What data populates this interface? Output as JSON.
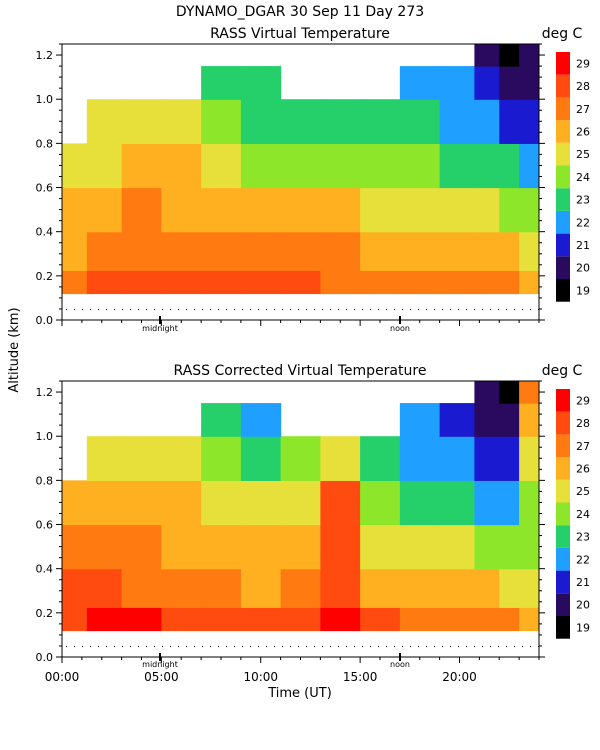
{
  "header": "DYNAMO_DGAR  30 Sep 11 Day 273",
  "y_axis_label": "Altitude (km)",
  "x_axis_label": "Time (UT)",
  "unit_label": "deg C",
  "markers": [
    "midnight",
    "noon"
  ],
  "colorbar": {
    "levels": [
      19,
      20,
      21,
      22,
      23,
      24,
      25,
      26,
      27,
      28,
      29
    ],
    "colors": [
      "#000000",
      "#2a0a5e",
      "#1a1ad0",
      "#1f9fff",
      "#25d06a",
      "#8ee62a",
      "#e8e03a",
      "#ffb020",
      "#ff7a10",
      "#ff4a10",
      "#ff0000"
    ]
  },
  "chart_data": [
    {
      "type": "heatmap",
      "title": "RASS Virtual Temperature",
      "x_ticks": [
        "00:00",
        "05:00",
        "10:00",
        "15:00",
        "20:00"
      ],
      "xlim": [
        0,
        24
      ],
      "ylim": [
        0.0,
        1.25
      ],
      "y_ticks": [
        "0.0",
        "0.2",
        "0.4",
        "0.6",
        "0.8",
        "1.0",
        "1.2"
      ],
      "z_units": "deg C",
      "x": [
        0.5,
        2,
        4,
        6,
        8,
        10,
        12,
        14,
        16,
        18,
        20,
        21.5,
        22.5,
        23.5
      ],
      "y": [
        0.15,
        0.3,
        0.5,
        0.7,
        0.9,
        1.1,
        1.2
      ],
      "z": [
        [
          27.6,
          28.2,
          28.6,
          28.8,
          28.7,
          28.8,
          28.7,
          27.8,
          27.4,
          27.4,
          27.4,
          27.4,
          27.0,
          26.8
        ],
        [
          26.8,
          27.2,
          27.6,
          27.8,
          27.7,
          27.6,
          27.4,
          27.0,
          26.8,
          26.6,
          26.4,
          26.2,
          26.0,
          25.8
        ],
        [
          26.4,
          26.6,
          27.0,
          26.8,
          26.6,
          26.2,
          26.0,
          26.0,
          25.8,
          25.6,
          25.4,
          25.0,
          24.6,
          24.4
        ],
        [
          25.6,
          25.8,
          26.4,
          26.0,
          25.4,
          24.8,
          24.6,
          24.6,
          24.2,
          24.0,
          23.8,
          23.4,
          23.0,
          22.8
        ],
        [
          null,
          25.0,
          25.8,
          25.2,
          24.2,
          23.8,
          23.6,
          23.6,
          23.4,
          23.0,
          22.6,
          22.2,
          21.8,
          21.6
        ],
        [
          null,
          null,
          null,
          null,
          23.8,
          23.2,
          null,
          null,
          null,
          22.8,
          22.2,
          21.4,
          20.4,
          20.2
        ],
        [
          null,
          null,
          null,
          null,
          null,
          null,
          null,
          null,
          null,
          null,
          null,
          20.2,
          19.8,
          20.2
        ]
      ]
    },
    {
      "type": "heatmap",
      "title": "RASS Corrected Virtual Temperature",
      "x_ticks": [
        "00:00",
        "05:00",
        "10:00",
        "15:00",
        "20:00"
      ],
      "xlim": [
        0,
        24
      ],
      "ylim": [
        0.0,
        1.25
      ],
      "y_ticks": [
        "0.0",
        "0.2",
        "0.4",
        "0.6",
        "0.8",
        "1.0",
        "1.2"
      ],
      "z_units": "deg C",
      "x": [
        0.5,
        2,
        4,
        6,
        8,
        10,
        12,
        14,
        16,
        18,
        20,
        21.5,
        22.5,
        23.5
      ],
      "y": [
        0.15,
        0.3,
        0.5,
        0.7,
        0.9,
        1.1,
        1.2
      ],
      "z": [
        [
          28.8,
          29.0,
          29.0,
          28.8,
          28.6,
          28.8,
          28.9,
          29.0,
          28.0,
          27.4,
          27.4,
          27.2,
          27.0,
          26.8
        ],
        [
          28.0,
          28.2,
          27.8,
          27.4,
          27.0,
          26.8,
          27.2,
          28.8,
          26.4,
          26.4,
          26.2,
          26.0,
          25.6,
          25.6
        ],
        [
          27.2,
          27.2,
          27.0,
          26.6,
          26.2,
          26.0,
          26.6,
          28.6,
          25.4,
          25.2,
          25.0,
          24.6,
          24.2,
          24.6
        ],
        [
          26.4,
          26.0,
          26.4,
          26.0,
          25.4,
          25.2,
          25.6,
          28.4,
          24.0,
          23.6,
          23.4,
          22.8,
          22.4,
          24.8
        ],
        [
          null,
          25.8,
          25.6,
          25.0,
          24.0,
          23.8,
          24.0,
          25.0,
          23.0,
          22.8,
          22.2,
          21.8,
          21.2,
          25.6
        ],
        [
          null,
          null,
          null,
          null,
          23.0,
          22.8,
          null,
          null,
          null,
          22.2,
          21.6,
          20.8,
          20.2,
          26.8
        ],
        [
          null,
          null,
          null,
          null,
          null,
          null,
          null,
          null,
          null,
          null,
          null,
          20.0,
          19.6,
          27.4
        ]
      ]
    }
  ]
}
